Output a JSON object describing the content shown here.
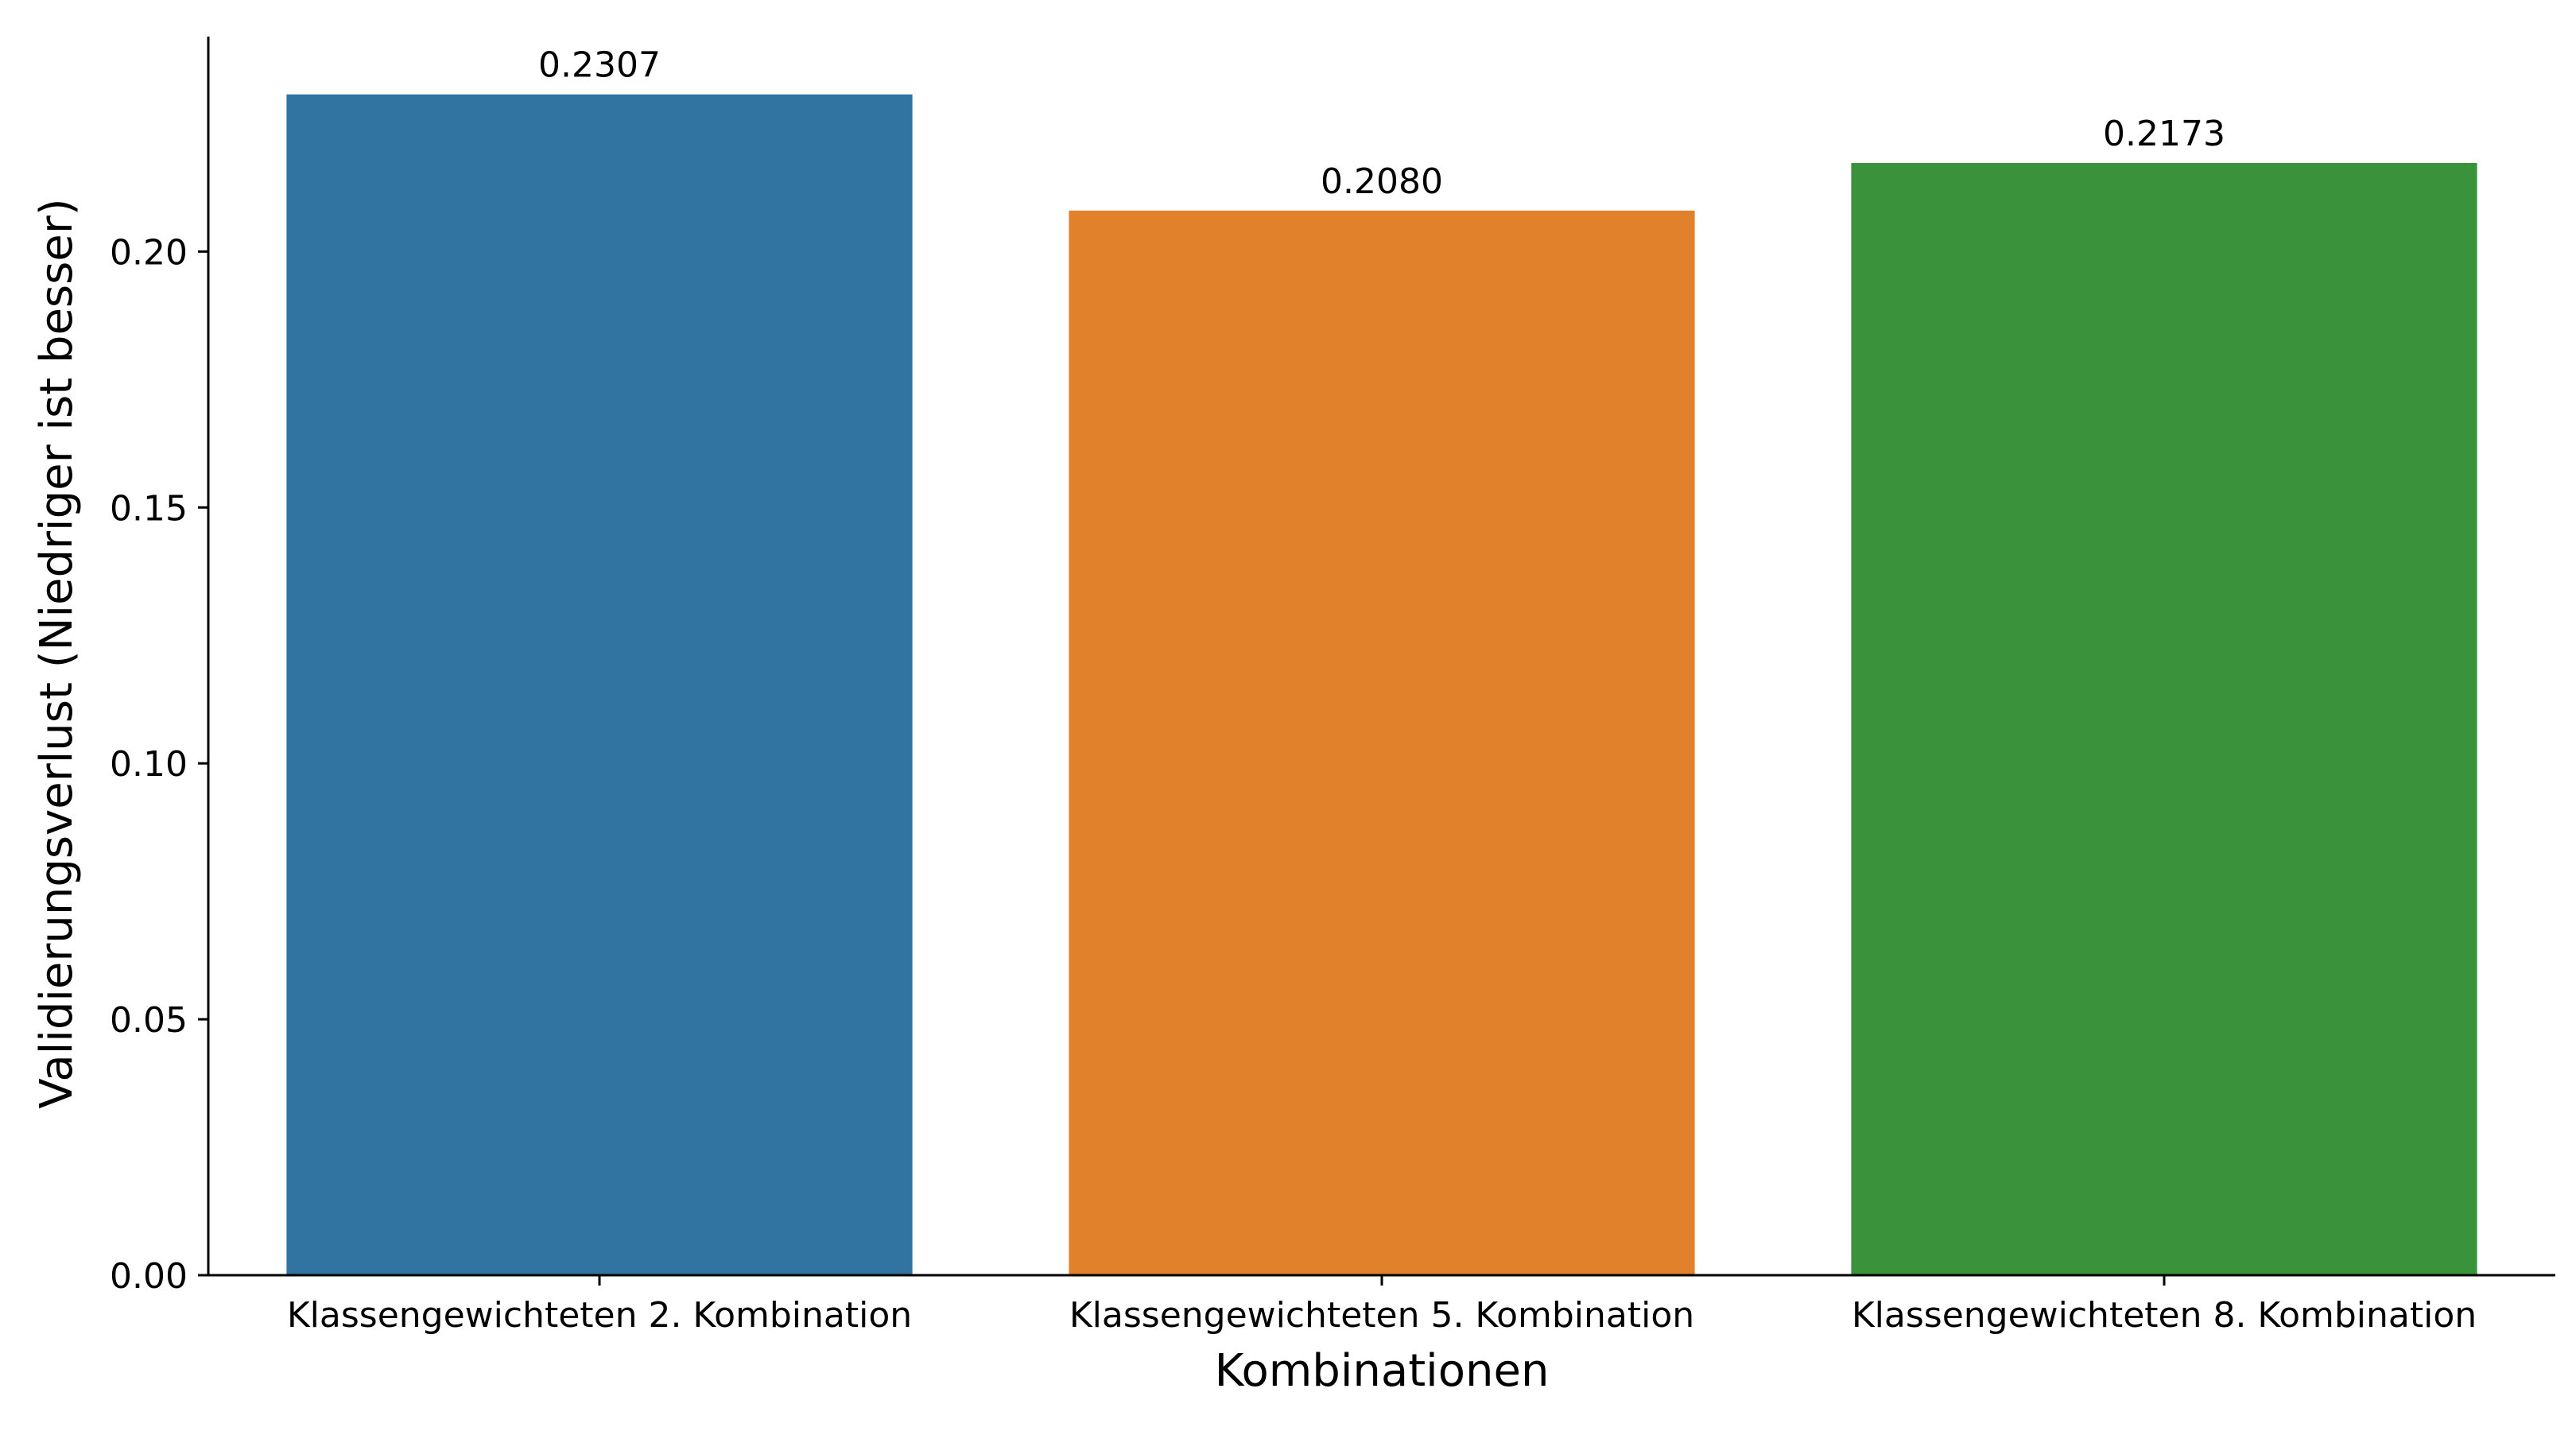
{
  "chart_data": {
    "type": "bar",
    "title": "",
    "xlabel": "Kombinationen",
    "ylabel": "Validierungsverlust (Niedriger ist besser)",
    "categories": [
      "Klassengewichteten 2. Kombination",
      "Klassengewichteten 5. Kombination",
      "Klassengewichteten 8. Kombination"
    ],
    "values": [
      0.2307,
      0.208,
      0.2173
    ],
    "value_labels": [
      "0.2307",
      "0.2080",
      "0.2173"
    ],
    "colors": [
      "#3274a1",
      "#e1812c",
      "#3a923a"
    ],
    "ylim": [
      0,
      0.242
    ],
    "yticks": [
      0.0,
      0.05,
      0.1,
      0.15,
      0.2
    ],
    "ytick_labels": [
      "0.00",
      "0.05",
      "0.10",
      "0.15",
      "0.20"
    ],
    "grid": false,
    "legend": "none"
  }
}
